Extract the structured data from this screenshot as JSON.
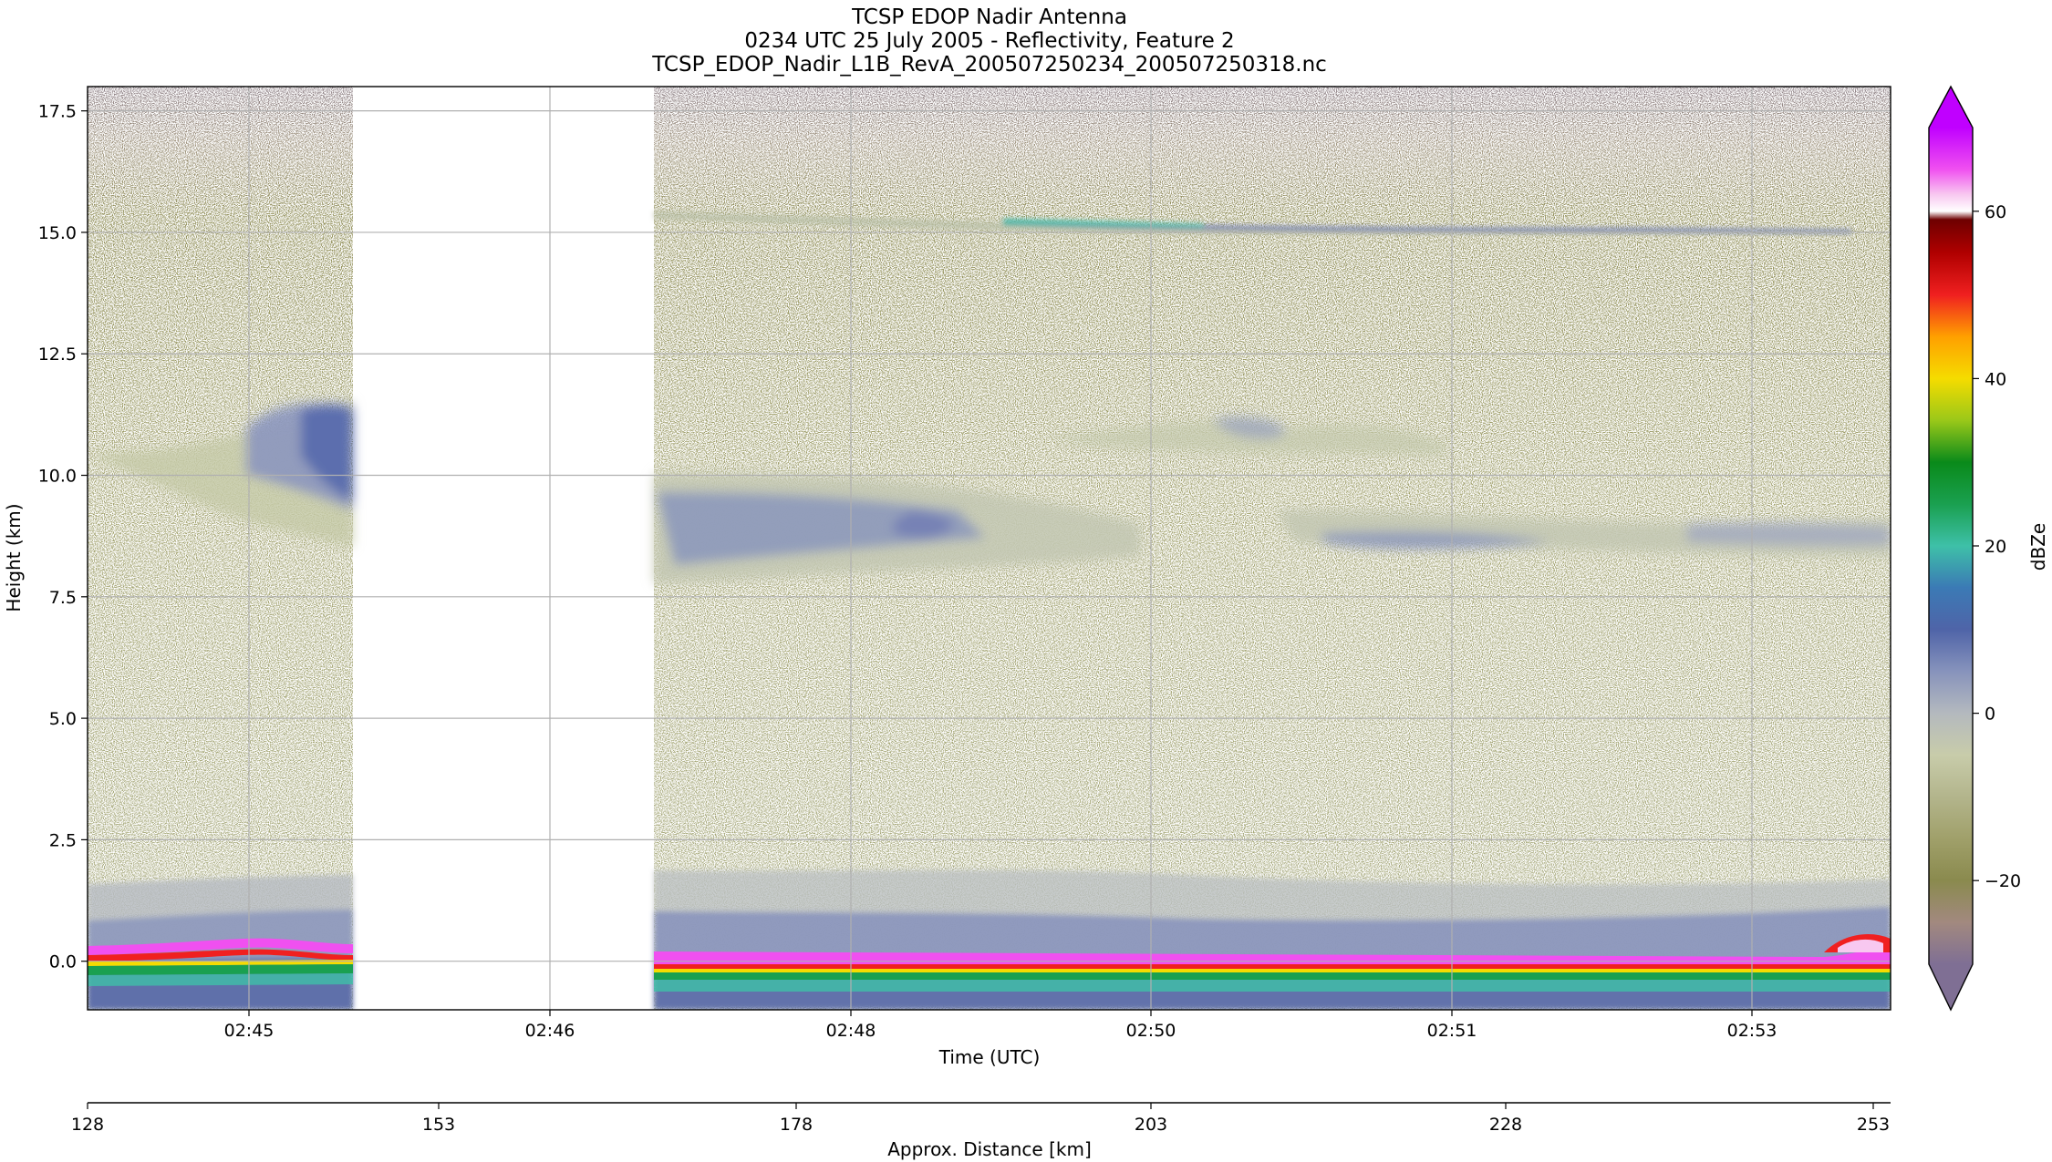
{
  "chart_data": {
    "type": "heatmap",
    "title": [
      "TCSP EDOP Nadir Antenna",
      "0234 UTC 25 July 2005 - Reflectivity, Feature 2",
      "TCSP_EDOP_Nadir_L1B_RevA_200507250234_200507250318.nc"
    ],
    "xlabel": "Time (UTC)",
    "ylabel": "Height (km)",
    "x2label": "Approx. Distance [km]",
    "colorbar_label": "dBZe",
    "x_ticks": [
      "02:45",
      "02:46",
      "02:48",
      "02:50",
      "02:51",
      "02:53"
    ],
    "x2_ticks": [
      "128",
      "153",
      "178",
      "203",
      "228",
      "253"
    ],
    "y_ticks": [
      "0.0",
      "2.5",
      "5.0",
      "7.5",
      "10.0",
      "12.5",
      "15.0",
      "17.5"
    ],
    "ylim": [
      -1.0,
      18.0
    ],
    "colorbar_ticks": [
      "−20",
      "0",
      "20",
      "40",
      "60"
    ],
    "colorbar_range": [
      -30,
      70
    ],
    "grid": true,
    "data_gap": {
      "x_fraction_start": 0.147,
      "x_fraction_end": 0.314
    },
    "features": [
      {
        "name": "surface return",
        "height_km": 0.0,
        "dbz_max": 65
      },
      {
        "name": "boundary layer cloud",
        "height_km": [
          0.0,
          1.5
        ],
        "dbz": 10
      },
      {
        "name": "anvil cloud",
        "height_km": [
          8.0,
          11.0
        ],
        "dbz": 5
      },
      {
        "name": "thin cirrus layer",
        "height_km": 15.0,
        "dbz": 15
      }
    ],
    "colormap": [
      {
        "v": -30,
        "c": "#7f6f94"
      },
      {
        "v": -25,
        "c": "#a2897f"
      },
      {
        "v": -20,
        "c": "#8a8a4e"
      },
      {
        "v": -15,
        "c": "#a0a06a"
      },
      {
        "v": -10,
        "c": "#b3b58c"
      },
      {
        "v": -5,
        "c": "#c8ccaa"
      },
      {
        "v": 0,
        "c": "#b4b9be"
      },
      {
        "v": 5,
        "c": "#8793bc"
      },
      {
        "v": 10,
        "c": "#4f64a8"
      },
      {
        "v": 15,
        "c": "#3b7ab5"
      },
      {
        "v": 20,
        "c": "#3ec0a8"
      },
      {
        "v": 25,
        "c": "#1aa050"
      },
      {
        "v": 30,
        "c": "#0a8a1a"
      },
      {
        "v": 35,
        "c": "#9ac819"
      },
      {
        "v": 40,
        "c": "#f5dc00"
      },
      {
        "v": 45,
        "c": "#ffa000"
      },
      {
        "v": 50,
        "c": "#f02020"
      },
      {
        "v": 55,
        "c": "#b00000"
      },
      {
        "v": 59,
        "c": "#6e0000"
      },
      {
        "v": 60,
        "c": "#ffffff"
      },
      {
        "v": 62,
        "c": "#f8c8f0"
      },
      {
        "v": 65,
        "c": "#f050f0"
      },
      {
        "v": 70,
        "c": "#c000ff"
      }
    ]
  }
}
